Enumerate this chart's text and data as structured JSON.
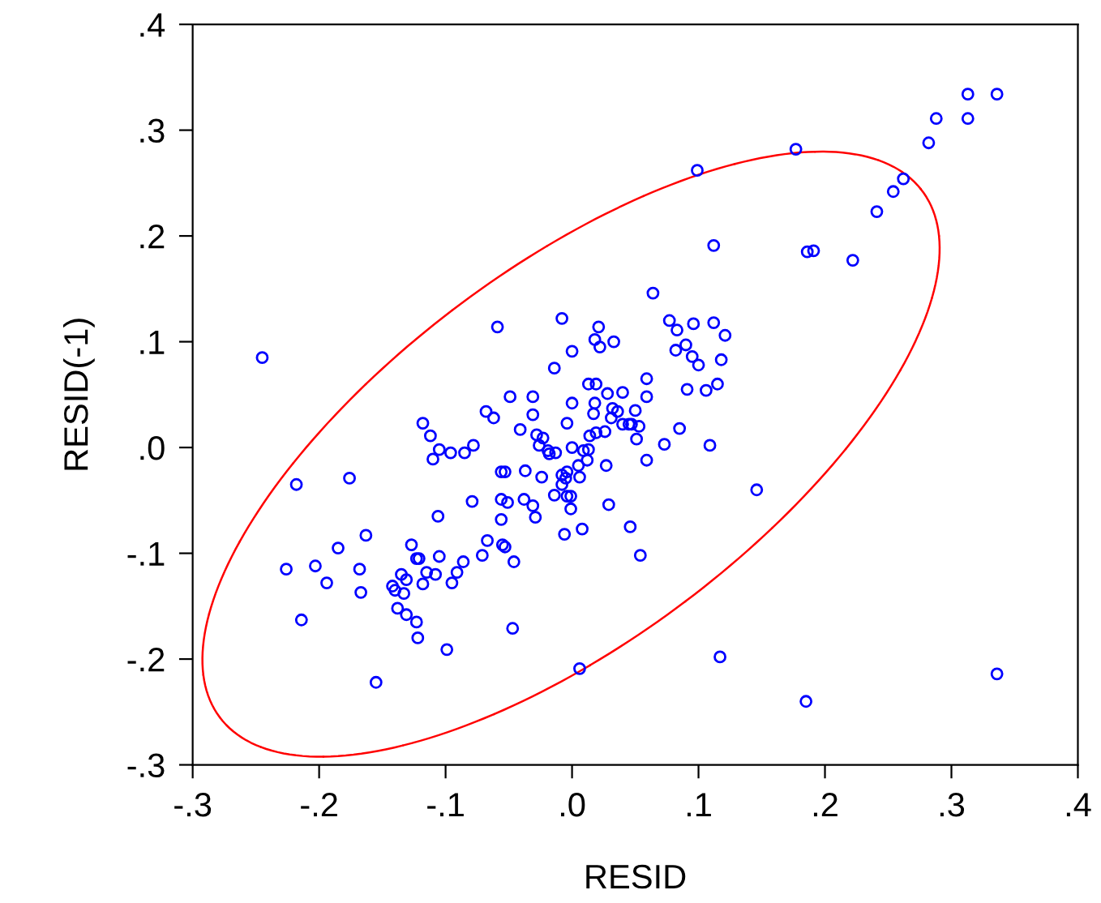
{
  "chart_data": {
    "type": "scatter",
    "xlabel": "RESID",
    "ylabel": "RESID(-1)",
    "xlim": [
      -0.3,
      0.4
    ],
    "ylim": [
      -0.3,
      0.4
    ],
    "xticks": [
      {
        "value": -0.3,
        "label": "-.3"
      },
      {
        "value": -0.2,
        "label": "-.2"
      },
      {
        "value": -0.1,
        "label": "-.1"
      },
      {
        "value": 0.0,
        "label": ".0"
      },
      {
        "value": 0.1,
        "label": ".1"
      },
      {
        "value": 0.2,
        "label": ".2"
      },
      {
        "value": 0.3,
        "label": ".3"
      },
      {
        "value": 0.4,
        "label": ".4"
      }
    ],
    "yticks": [
      {
        "value": -0.3,
        "label": "-.3"
      },
      {
        "value": -0.2,
        "label": "-.2"
      },
      {
        "value": -0.1,
        "label": "-.1"
      },
      {
        "value": 0.0,
        "label": ".0"
      },
      {
        "value": 0.1,
        "label": ".1"
      },
      {
        "value": 0.2,
        "label": ".2"
      },
      {
        "value": 0.3,
        "label": ".3"
      },
      {
        "value": 0.4,
        "label": ".4"
      }
    ],
    "grid": false,
    "marker": "circle",
    "series": [
      {
        "color": "#0000ff",
        "x": [
          -0.245,
          -0.218,
          -0.176,
          -0.163,
          -0.185,
          -0.226,
          -0.203,
          -0.194,
          -0.168,
          -0.167,
          -0.214,
          -0.155,
          -0.127,
          -0.123,
          -0.121,
          -0.105,
          -0.135,
          -0.131,
          -0.142,
          -0.14,
          -0.133,
          -0.118,
          -0.115,
          -0.108,
          -0.095,
          -0.091,
          -0.086,
          -0.071,
          -0.067,
          -0.138,
          -0.131,
          -0.123,
          -0.122,
          -0.099,
          -0.118,
          -0.112,
          -0.105,
          -0.096,
          -0.11,
          -0.085,
          -0.078,
          -0.059,
          -0.068,
          -0.062,
          -0.106,
          -0.079,
          -0.056,
          -0.056,
          -0.056,
          -0.055,
          0.112,
          0.064,
          -0.008,
          0.021,
          0.018,
          0.022,
          0.033,
          0.0,
          -0.014,
          0.077,
          0.083,
          0.096,
          0.112,
          0.121,
          0.082,
          0.09,
          0.095,
          0.1,
          0.118,
          0.115,
          0.106,
          0.091,
          0.085,
          0.109,
          0.073,
          0.059,
          0.059,
          0.04,
          0.028,
          0.013,
          0.019,
          0.0,
          0.018,
          0.05,
          0.017,
          0.032,
          0.036,
          0.031,
          0.04,
          0.045,
          0.047,
          0.053,
          0.051,
          0.026,
          0.019,
          0.014,
          0.013,
          0.009,
          0.0,
          0.012,
          0.005,
          0.027,
          0.059,
          -0.004,
          -0.049,
          -0.031,
          -0.031,
          -0.041,
          -0.028,
          -0.023,
          -0.026,
          -0.019,
          -0.018,
          -0.013,
          -0.037,
          -0.024,
          -0.053,
          -0.008,
          -0.004,
          -0.005,
          0.006,
          -0.008,
          -0.014,
          -0.004,
          -0.001,
          0.029,
          -0.001,
          -0.051,
          -0.038,
          -0.031,
          -0.029,
          0.008,
          -0.006,
          0.046,
          0.054,
          -0.053,
          -0.046,
          0.006,
          -0.047,
          0.313,
          0.336,
          0.288,
          0.313,
          0.282,
          0.262,
          0.254,
          0.241,
          0.177,
          0.099,
          0.186,
          0.191,
          0.222,
          0.146,
          0.117,
          0.185,
          0.336
        ],
        "values": [
          0.085,
          -0.035,
          -0.029,
          -0.083,
          -0.095,
          -0.115,
          -0.112,
          -0.128,
          -0.115,
          -0.137,
          -0.163,
          -0.222,
          -0.092,
          -0.105,
          -0.105,
          -0.103,
          -0.12,
          -0.125,
          -0.131,
          -0.135,
          -0.138,
          -0.129,
          -0.118,
          -0.12,
          -0.128,
          -0.118,
          -0.108,
          -0.102,
          -0.088,
          -0.152,
          -0.158,
          -0.165,
          -0.18,
          -0.191,
          0.023,
          0.011,
          -0.002,
          -0.005,
          -0.011,
          -0.005,
          0.002,
          0.114,
          0.034,
          0.028,
          -0.065,
          -0.051,
          -0.023,
          -0.049,
          -0.068,
          -0.092,
          0.191,
          0.146,
          0.122,
          0.114,
          0.102,
          0.095,
          0.1,
          0.091,
          0.075,
          0.12,
          0.111,
          0.117,
          0.118,
          0.106,
          0.092,
          0.097,
          0.086,
          0.078,
          0.083,
          0.06,
          0.054,
          0.055,
          0.018,
          0.002,
          0.003,
          0.065,
          0.048,
          0.052,
          0.051,
          0.06,
          0.06,
          0.042,
          0.042,
          0.035,
          0.032,
          0.037,
          0.034,
          0.028,
          0.022,
          0.022,
          0.022,
          0.02,
          0.008,
          0.015,
          0.014,
          0.011,
          -0.002,
          -0.003,
          0.0,
          -0.012,
          -0.017,
          -0.017,
          -0.012,
          0.023,
          0.048,
          0.048,
          0.031,
          0.017,
          0.012,
          0.009,
          0.002,
          -0.003,
          -0.006,
          -0.005,
          -0.022,
          -0.028,
          -0.023,
          -0.026,
          -0.023,
          -0.029,
          -0.028,
          -0.035,
          -0.045,
          -0.046,
          -0.046,
          -0.054,
          -0.058,
          -0.052,
          -0.049,
          -0.055,
          -0.066,
          -0.077,
          -0.082,
          -0.075,
          -0.102,
          -0.094,
          -0.108,
          -0.209,
          -0.171,
          0.334,
          0.334,
          0.311,
          0.311,
          0.288,
          0.254,
          0.242,
          0.223,
          0.282,
          0.262,
          0.185,
          0.186,
          0.177,
          -0.04,
          -0.198,
          -0.24,
          -0.214
        ]
      }
    ]
  }
}
